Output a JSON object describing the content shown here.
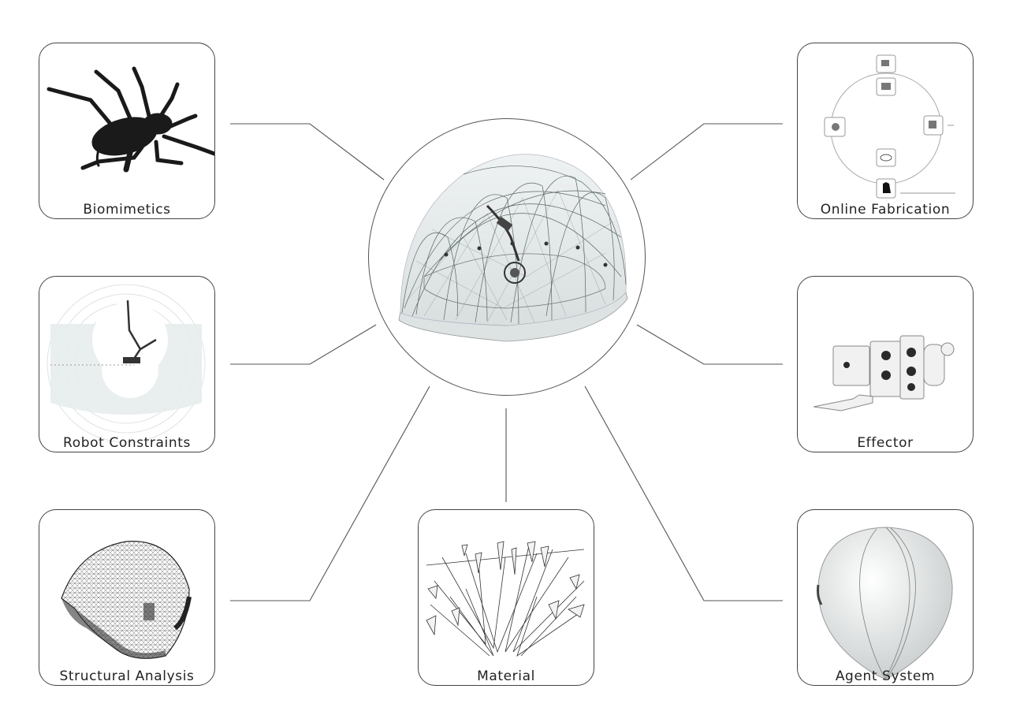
{
  "hub": {
    "name": "Pavilion Dome Structure"
  },
  "panels": [
    {
      "id": "biomimetics",
      "label": "Biomimetics"
    },
    {
      "id": "online-fabrication",
      "label": "Online Fabrication"
    },
    {
      "id": "robot-constraints",
      "label": "Robot Constraints"
    },
    {
      "id": "effector",
      "label": "Effector"
    },
    {
      "id": "structural-analysis",
      "label": "Structural Analysis"
    },
    {
      "id": "material",
      "label": "Material"
    },
    {
      "id": "agent-system",
      "label": "Agent System"
    }
  ],
  "colors": {
    "line": "#444444",
    "ink": "#222222",
    "grey": "#9a9a9a",
    "light": "#e6e6e6"
  }
}
